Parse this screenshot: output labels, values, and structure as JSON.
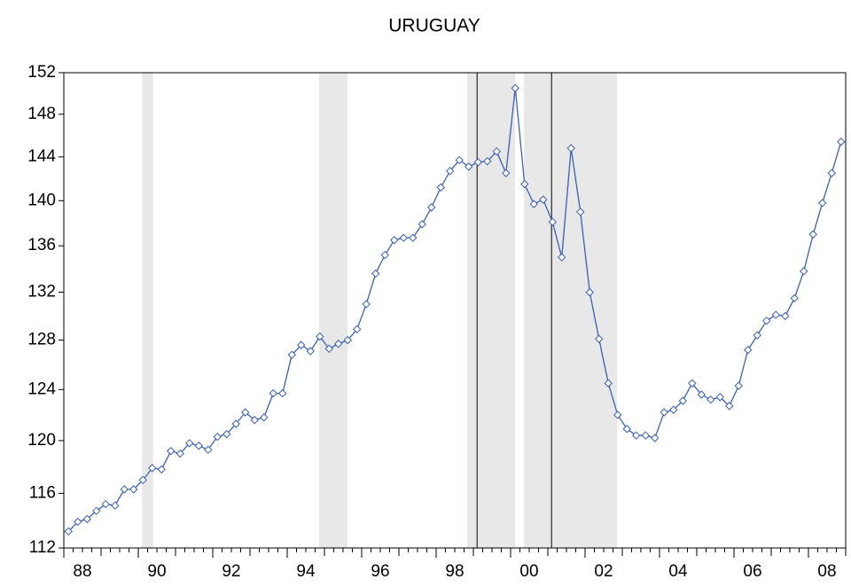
{
  "chart_data": {
    "type": "line",
    "title": "URUGUAY",
    "log_scale": true,
    "x": [
      1988.125,
      1988.375,
      1988.625,
      1988.875,
      1989.125,
      1989.375,
      1989.625,
      1989.875,
      1990.125,
      1990.375,
      1990.625,
      1990.875,
      1991.125,
      1991.375,
      1991.625,
      1991.875,
      1992.125,
      1992.375,
      1992.625,
      1992.875,
      1993.125,
      1993.375,
      1993.625,
      1993.875,
      1994.125,
      1994.375,
      1994.625,
      1994.875,
      1995.125,
      1995.375,
      1995.625,
      1995.875,
      1996.125,
      1996.375,
      1996.625,
      1996.875,
      1997.125,
      1997.375,
      1997.625,
      1997.875,
      1998.125,
      1998.375,
      1998.625,
      1998.875,
      1999.125,
      1999.375,
      1999.625,
      1999.875,
      2000.125,
      2000.375,
      2000.625,
      2000.875,
      2001.125,
      2001.375,
      2001.625,
      2001.875,
      2002.125,
      2002.375,
      2002.625,
      2002.875,
      2003.125,
      2003.375,
      2003.625,
      2003.875,
      2004.125,
      2004.375,
      2004.625,
      2004.875,
      2005.125,
      2005.375,
      2005.625,
      2005.875,
      2006.125,
      2006.375,
      2006.625,
      2006.875,
      2007.125,
      2007.375,
      2007.625,
      2007.875,
      2008.125,
      2008.375,
      2008.625,
      2008.875
    ],
    "series": [
      {
        "name": "URUGUAY",
        "color": "#3b5fb5",
        "values": [
          113.2,
          113.9,
          114.1,
          114.7,
          115.2,
          115.1,
          116.3,
          116.3,
          117.0,
          117.9,
          117.8,
          119.2,
          119.0,
          119.8,
          119.6,
          119.3,
          120.3,
          120.5,
          121.3,
          122.2,
          121.6,
          121.8,
          123.7,
          123.7,
          126.8,
          127.6,
          127.1,
          128.3,
          127.3,
          127.7,
          128.0,
          128.9,
          131.0,
          133.6,
          135.2,
          136.5,
          136.7,
          136.7,
          137.9,
          139.4,
          141.2,
          142.7,
          143.7,
          143.1,
          143.5,
          143.6,
          144.5,
          142.5,
          150.5,
          141.5,
          139.7,
          140.1,
          138.1,
          135.0,
          144.8,
          139.0,
          132.0,
          128.1,
          124.5,
          122.0,
          120.9,
          120.4,
          120.4,
          120.2,
          122.2,
          122.4,
          123.1,
          124.5,
          123.6,
          123.2,
          123.4,
          122.7,
          124.3,
          127.2,
          128.4,
          129.6,
          130.1,
          130.0,
          131.5,
          133.8,
          137.0,
          139.8,
          142.5,
          145.4
        ]
      }
    ],
    "xlim": [
      1988,
      2009
    ],
    "xticks": [
      {
        "value": 1988,
        "label": "88"
      },
      {
        "value": 1990,
        "label": "90"
      },
      {
        "value": 1992,
        "label": "92"
      },
      {
        "value": 1994,
        "label": "94"
      },
      {
        "value": 1996,
        "label": "96"
      },
      {
        "value": 1998,
        "label": "98"
      },
      {
        "value": 2000,
        "label": "00"
      },
      {
        "value": 2002,
        "label": "02"
      },
      {
        "value": 2004,
        "label": "04"
      },
      {
        "value": 2006,
        "label": "06"
      },
      {
        "value": 2008,
        "label": "08"
      }
    ],
    "ylim": [
      112,
      152
    ],
    "yticks": [
      112,
      116,
      120,
      124,
      128,
      132,
      136,
      140,
      144,
      148,
      152
    ],
    "shaded_ranges": [
      [
        1990.1,
        1990.4
      ],
      [
        1994.86,
        1995.62
      ],
      [
        1998.83,
        2000.12
      ],
      [
        2000.36,
        2002.86
      ]
    ],
    "shade_color": "#e8e8e8",
    "vlines": [
      1999.1,
      2001.1
    ]
  }
}
